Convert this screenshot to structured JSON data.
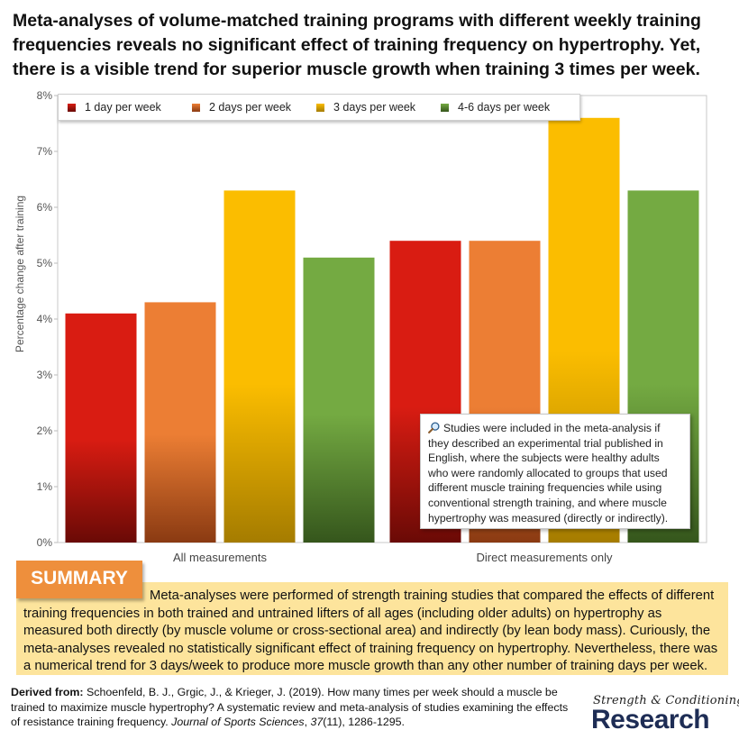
{
  "title": "Meta-analyses of volume-matched training programs with different weekly training frequencies reveals no significant effect of training frequency on hypertrophy. Yet, there is a visible trend for superior muscle growth when training 3 times per week.",
  "chart_data": {
    "type": "bar",
    "categories": [
      "All measurements",
      "Direct measurements only"
    ],
    "series": [
      {
        "name": "1 day per week",
        "values": [
          4.1,
          5.4
        ],
        "color": "#d91c12",
        "color_dark": "#6a0a06"
      },
      {
        "name": "2 days per week",
        "values": [
          4.3,
          5.4
        ],
        "color": "#ec7e34",
        "color_dark": "#8a3a12"
      },
      {
        "name": "3 days per week",
        "values": [
          6.3,
          7.6
        ],
        "color": "#fbbd00",
        "color_dark": "#a57c00"
      },
      {
        "name": "4-6 days per week",
        "values": [
          5.1,
          6.3
        ],
        "color": "#74aa42",
        "color_dark": "#35561c"
      }
    ],
    "ylabel": "Percentage change after training",
    "ylim": [
      0,
      8
    ],
    "yticks": [
      0,
      1,
      2,
      3,
      4,
      5,
      6,
      7,
      8
    ],
    "ytick_labels": [
      "0%",
      "1%",
      "2%",
      "3%",
      "4%",
      "5%",
      "6%",
      "7%",
      "8%"
    ],
    "legend_position": "top-left",
    "grid": false,
    "annotation": "Studies were included in the meta-analysis if they described an experimental trial published in English, where the subjects were healthy adults who were randomly allocated to groups that used different muscle training frequencies while using conventional strength training, and where muscle hypertrophy was measured (directly or indirectly)."
  },
  "summary": {
    "label": "SUMMARY",
    "text": "Meta-analyses were performed of strength training studies that compared the effects of different training frequencies in both trained and untrained lifters of all ages (including older adults) on hypertrophy as measured both directly (by muscle volume or cross-sectional area) and indirectly (by lean body mass). Curiously, the meta-analyses revealed no statistically significant effect of training frequency on hypertrophy. Nevertheless, there was a numerical trend for 3 days/week to produce more muscle growth than any other number of training days per week."
  },
  "footer": {
    "label": "Derived from:",
    "citation_pre": "Schoenfeld, B. J., Grgic, J., & Krieger, J. (2019). How many times per week should a muscle be trained to maximize muscle hypertrophy? A systematic review and meta-analysis of studies examining the effects of resistance training frequency.",
    "journal": "Journal of Sports Sciences",
    "comma1": ", ",
    "volume": "37",
    "citation_post": "(11), 1286-1295."
  },
  "logo": {
    "top": "Strength & Conditioning",
    "bottom": "Research"
  }
}
